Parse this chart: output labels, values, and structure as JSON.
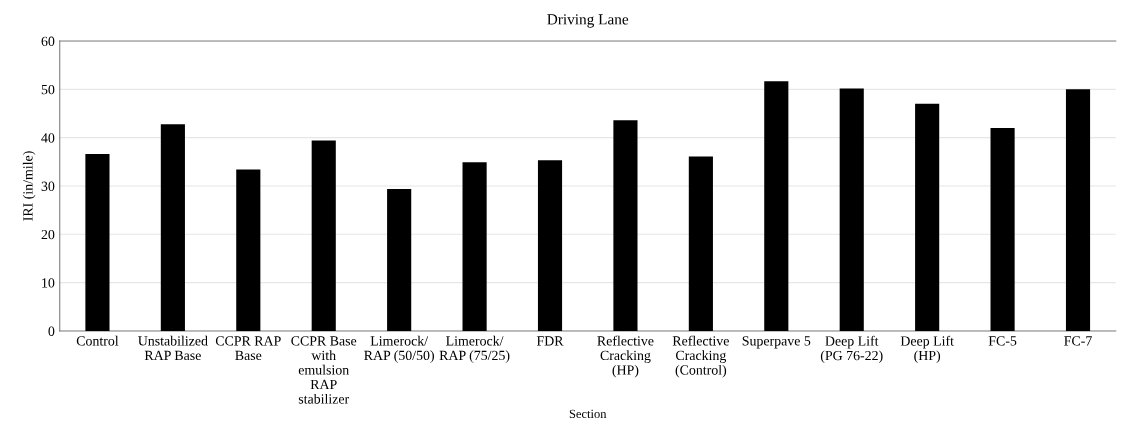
{
  "chart_data": {
    "type": "bar",
    "title": "Driving Lane",
    "xlabel": "Section",
    "ylabel": "IRI (in/mile)",
    "categories": [
      "Control",
      "Unstabilized\nRAP Base",
      "CCPR RAP\nBase",
      "CCPR Base\nwith\nemulsion\nRAP\nstabilizer",
      "Limerock/\nRAP (50/50)",
      "Limerock/\nRAP (75/25)",
      "FDR",
      "Reflective\nCracking\n(HP)",
      "Reflective\nCracking\n(Control)",
      "Superpave 5",
      "Deep Lift\n(PG 76-22)",
      "Deep Lift\n(HP)",
      "FC-5",
      "FC-7"
    ],
    "values": [
      36.6,
      42.8,
      33.4,
      39.4,
      29.4,
      34.9,
      35.3,
      43.6,
      36.1,
      51.7,
      50.2,
      47.0,
      42.0,
      50.0
    ],
    "color": "#000000",
    "ylim": [
      0,
      60
    ],
    "yticks": [
      0,
      10,
      20,
      30,
      40,
      50,
      60
    ],
    "grid": "y",
    "legend": false
  }
}
